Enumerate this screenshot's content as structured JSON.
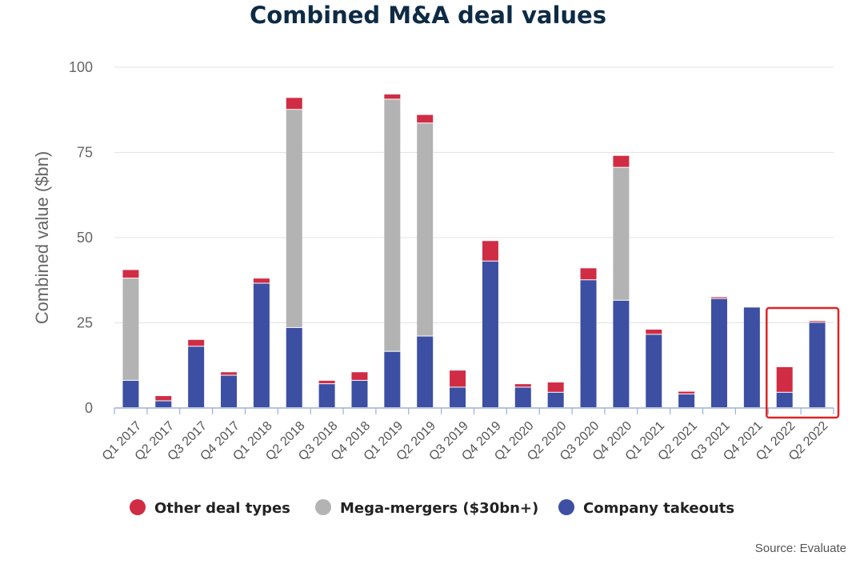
{
  "chart_data": {
    "type": "bar",
    "stacked": true,
    "title": "Combined M&A deal values",
    "ylabel": "Combined value ($bn)",
    "xlabel": "",
    "ylim": [
      0,
      100
    ],
    "yticks": [
      0,
      25,
      50,
      75,
      100
    ],
    "grid": true,
    "legend_position": "bottom",
    "categories": [
      "Q1 2017",
      "Q2 2017",
      "Q3 2017",
      "Q4 2017",
      "Q1 2018",
      "Q2 2018",
      "Q3 2018",
      "Q4 2018",
      "Q1 2019",
      "Q2 2019",
      "Q3 2019",
      "Q4 2019",
      "Q1 2020",
      "Q2 2020",
      "Q3 2020",
      "Q4 2020",
      "Q1 2021",
      "Q2 2021",
      "Q3 2021",
      "Q4 2021",
      "Q1 2022",
      "Q2 2022"
    ],
    "series": [
      {
        "name": "Company takeouts",
        "color": "#3d4fa3",
        "values": [
          8,
          2,
          18,
          9.5,
          36.5,
          23.5,
          7,
          8,
          16.5,
          21,
          6,
          43,
          6,
          4.5,
          37.5,
          31.5,
          21.5,
          4,
          32,
          29.5,
          4.5,
          25
        ]
      },
      {
        "name": "Mega-mergers ($30bn+)",
        "color": "#b3b3b3",
        "values": [
          30,
          0,
          0,
          0,
          0,
          64,
          0,
          0,
          74,
          62.5,
          0,
          0,
          0,
          0,
          0,
          39,
          0,
          0,
          0,
          0,
          0,
          0
        ]
      },
      {
        "name": "Other deal types",
        "color": "#d02d45",
        "values": [
          2.5,
          1.5,
          2,
          1,
          1.5,
          3.5,
          1,
          2.5,
          1.5,
          2.5,
          5,
          6,
          1,
          3,
          3.5,
          3.5,
          1.5,
          0.8,
          0.5,
          0,
          7.5,
          0.5
        ]
      }
    ],
    "legend_order": [
      "Other deal types",
      "Mega-mergers ($30bn+)",
      "Company takeouts"
    ],
    "highlight": {
      "categories": [
        "Q1 2022",
        "Q2 2022"
      ],
      "color": "#e02424"
    },
    "source": "Source: Evaluate"
  }
}
